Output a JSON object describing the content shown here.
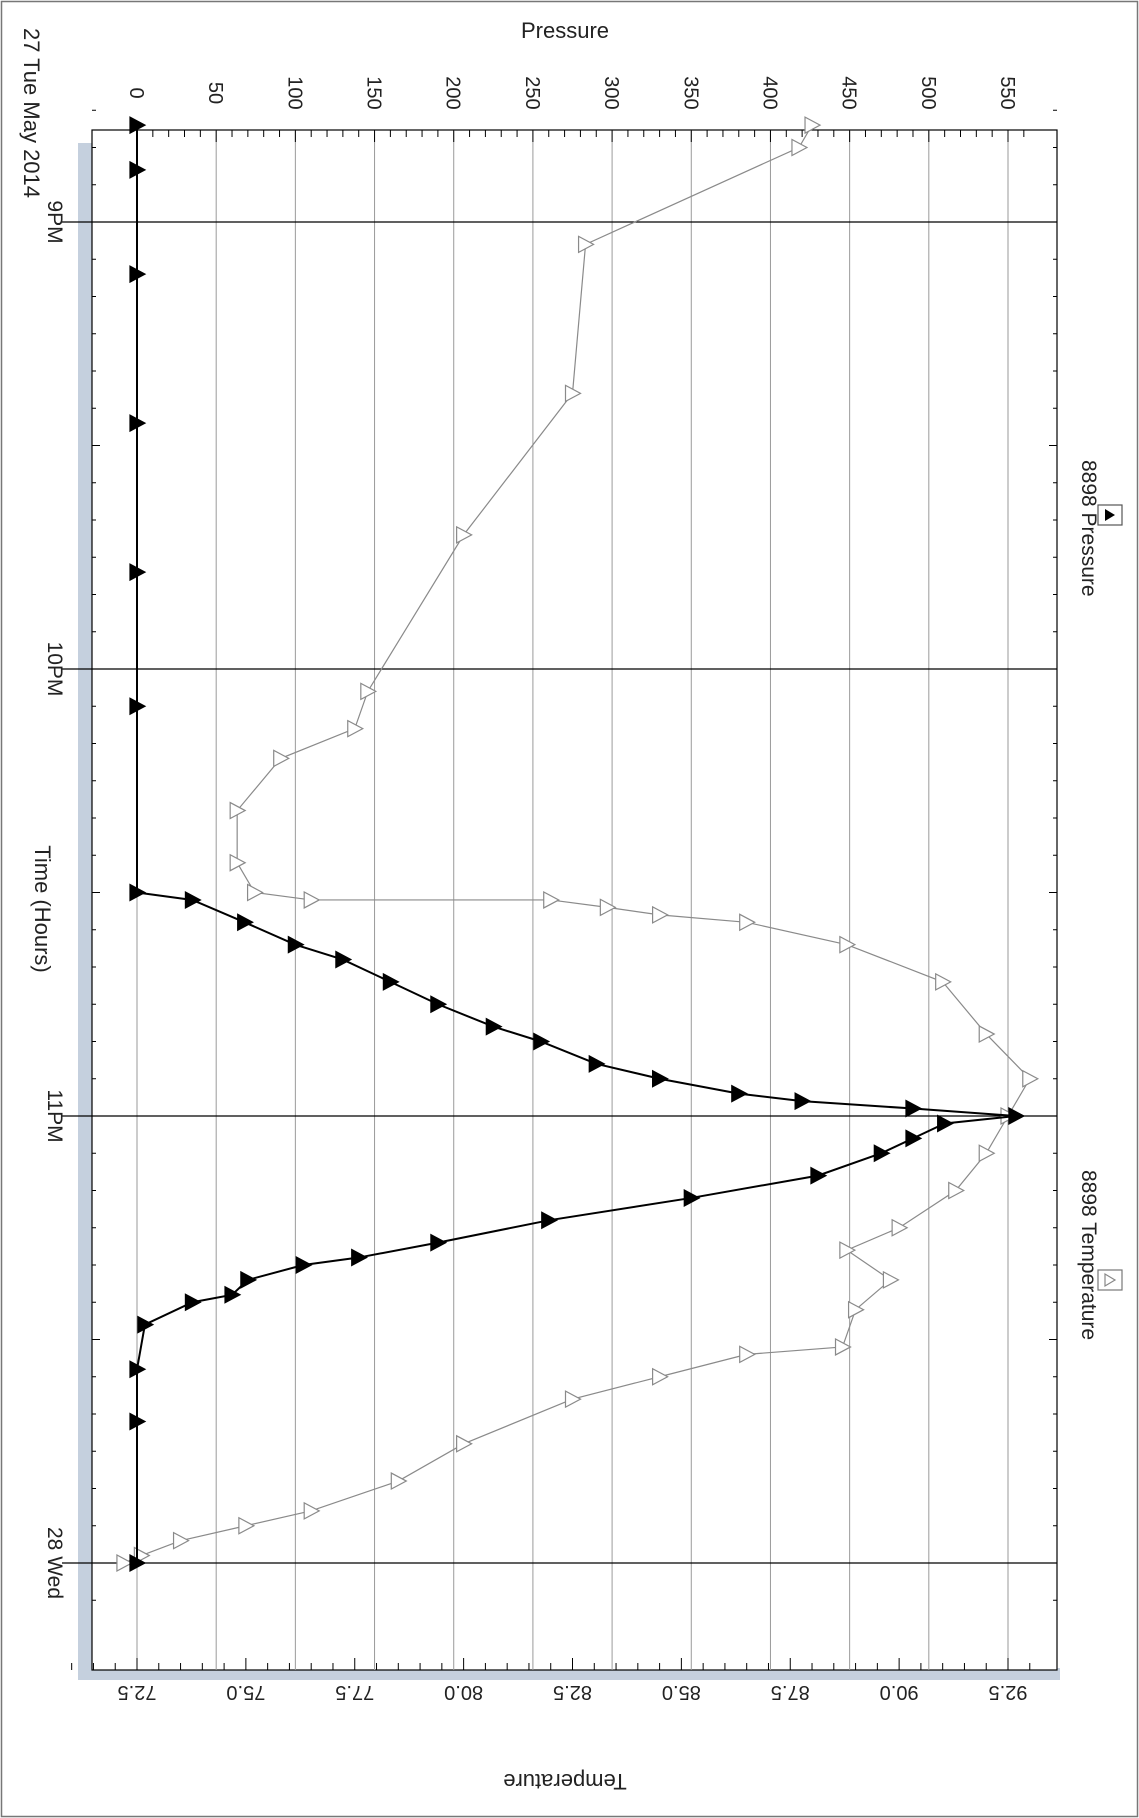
{
  "chart_data": {
    "type": "line",
    "orientation": "rotated-90",
    "date_label": "27 Tue May 2014",
    "xlabel": "Time (Hours)",
    "x_ticks": [
      "9PM",
      "10PM",
      "11PM",
      "28 Wed"
    ],
    "y_left": {
      "label": "Pressure",
      "ylim": [
        0,
        580
      ],
      "ticks": [
        0,
        50,
        100,
        150,
        200,
        250,
        300,
        350,
        400,
        450,
        500,
        550
      ]
    },
    "y_right": {
      "label": "Temperature",
      "ylim": [
        71.0,
        93.5
      ],
      "ticks": [
        "72.5",
        "75.0",
        "77.5",
        "80.0",
        "82.5",
        "85.0",
        "87.5",
        "90.0",
        "92.5"
      ]
    },
    "grid": true,
    "legend": [
      "8898 Pressure",
      "8898 Temperature"
    ],
    "series": [
      {
        "name": "8898 Pressure",
        "axis": "pressure",
        "color": "#000000",
        "marker": "filled-triangle",
        "points": [
          [
            "8:47 PM",
            0
          ],
          [
            "8:53 PM",
            0
          ],
          [
            "9:07 PM",
            0
          ],
          [
            "9:27 PM",
            0
          ],
          [
            "9:47 PM",
            0
          ],
          [
            "10:05 PM",
            0
          ],
          [
            "10:30 PM",
            0
          ],
          [
            "10:31 PM",
            35
          ],
          [
            "10:34 PM",
            68
          ],
          [
            "10:37 PM",
            100
          ],
          [
            "10:39 PM",
            130
          ],
          [
            "10:42 PM",
            160
          ],
          [
            "10:45 PM",
            190
          ],
          [
            "10:48 PM",
            225
          ],
          [
            "10:50 PM",
            255
          ],
          [
            "10:53 PM",
            290
          ],
          [
            "10:55 PM",
            330
          ],
          [
            "10:57 PM",
            380
          ],
          [
            "10:58 PM",
            420
          ],
          [
            "10:59 PM",
            490
          ],
          [
            "11:00 PM",
            555
          ],
          [
            "11:01 PM",
            510
          ],
          [
            "11:03 PM",
            490
          ],
          [
            "11:05 PM",
            470
          ],
          [
            "11:08 PM",
            430
          ],
          [
            "11:11 PM",
            350
          ],
          [
            "11:14 PM",
            260
          ],
          [
            "11:17 PM",
            190
          ],
          [
            "11:19 PM",
            140
          ],
          [
            "11:20 PM",
            105
          ],
          [
            "11:22 PM",
            70
          ],
          [
            "11:24 PM",
            60
          ],
          [
            "11:25 PM",
            35
          ],
          [
            "11:28 PM",
            5
          ],
          [
            "11:34 PM",
            0
          ],
          [
            "11:41 PM",
            0
          ],
          [
            "12:00 AM",
            0
          ]
        ]
      },
      {
        "name": "8898 Temperature",
        "axis": "temperature",
        "color": "#8a8a8a",
        "marker": "open-triangle",
        "points": [
          [
            "8:47 PM",
            88.0
          ],
          [
            "8:50 PM",
            87.7
          ],
          [
            "9:03 PM",
            82.8
          ],
          [
            "9:23 PM",
            82.5
          ],
          [
            "9:42 PM",
            80.0
          ],
          [
            "10:03 PM",
            77.8
          ],
          [
            "10:08 PM",
            77.5
          ],
          [
            "10:12 PM",
            75.8
          ],
          [
            "10:19 PM",
            74.8
          ],
          [
            "10:26 PM",
            74.8
          ],
          [
            "10:30 PM",
            75.2
          ],
          [
            "10:31 PM",
            76.5
          ],
          [
            "10:31 PM",
            82.0
          ],
          [
            "10:32 PM",
            83.3
          ],
          [
            "10:33 PM",
            84.5
          ],
          [
            "10:34 PM",
            86.5
          ],
          [
            "10:37 PM",
            88.8
          ],
          [
            "10:42 PM",
            91.0
          ],
          [
            "10:49 PM",
            92.0
          ],
          [
            "10:55 PM",
            93.0
          ],
          [
            "11:00 PM",
            92.5
          ],
          [
            "11:05 PM",
            92.0
          ],
          [
            "11:10 PM",
            91.3
          ],
          [
            "11:15 PM",
            90.0
          ],
          [
            "11:18 PM",
            88.8
          ],
          [
            "11:22 PM",
            89.8
          ],
          [
            "11:26 PM",
            89.0
          ],
          [
            "11:31 PM",
            88.7
          ],
          [
            "11:32 PM",
            86.5
          ],
          [
            "11:35 PM",
            84.5
          ],
          [
            "11:38 PM",
            82.5
          ],
          [
            "11:44 PM",
            80.0
          ],
          [
            "11:49 PM",
            78.5
          ],
          [
            "11:53 PM",
            76.5
          ],
          [
            "11:55 PM",
            75.0
          ],
          [
            "11:57 PM",
            73.5
          ],
          [
            "11:59 PM",
            72.6
          ],
          [
            "12:00 AM",
            72.2
          ]
        ]
      }
    ]
  },
  "colors": {
    "plot_border": "#000000",
    "gridline": "#9a9a9a",
    "major_time_line": "#000000",
    "side_band": "#c5d0de",
    "pressure_series": "#000000",
    "temperature_series": "#8a8a8a"
  }
}
